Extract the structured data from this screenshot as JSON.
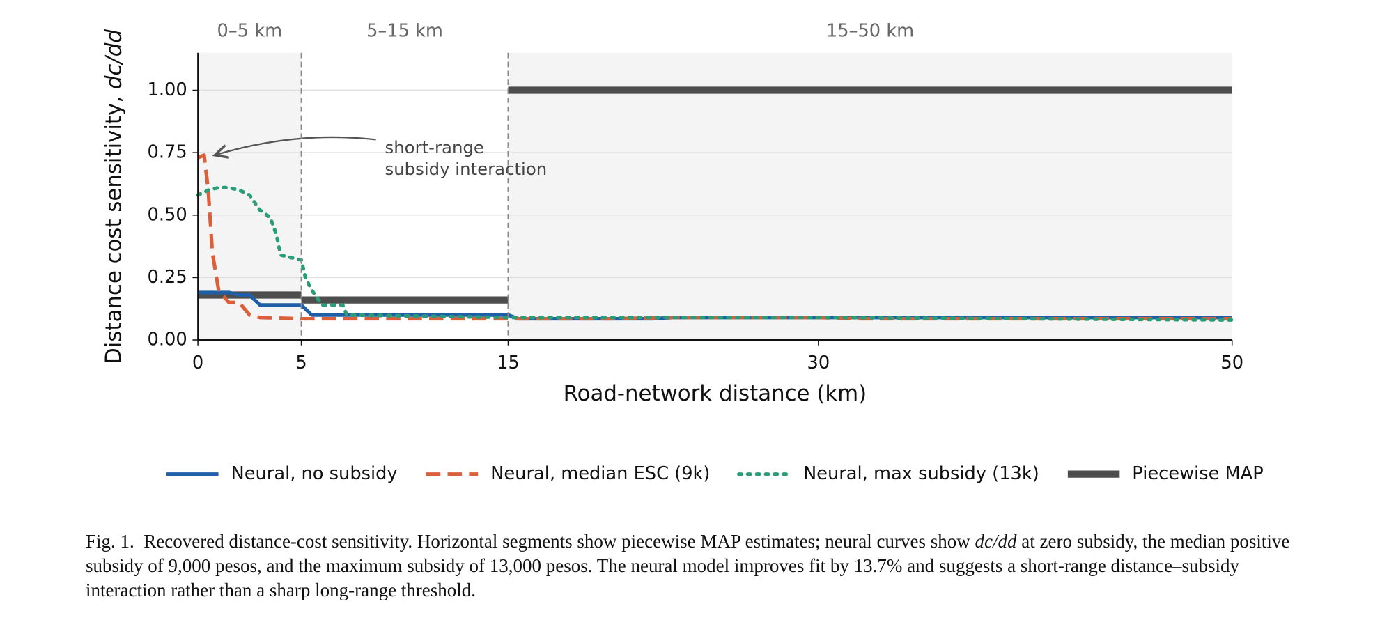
{
  "chart_data": {
    "type": "line",
    "x_label": "Road-network distance (km)",
    "y_label": {
      "text": "Distance cost sensitivity, ",
      "math": "dc/dd"
    },
    "xlim": [
      0,
      50
    ],
    "ylim": [
      0,
      1.15
    ],
    "xticks": [
      0,
      5,
      15,
      30,
      50
    ],
    "yticks": [
      {
        "value": 0,
        "label": "0.00"
      },
      {
        "value": 0.25,
        "label": "0.25"
      },
      {
        "value": 0.5,
        "label": "0.50"
      },
      {
        "value": 0.75,
        "label": "0.75"
      },
      {
        "value": 1.0,
        "label": "1.00"
      }
    ],
    "grid": true,
    "legend": "lower center outside",
    "regions": [
      {
        "label": "0–5 km",
        "x": [
          0,
          5
        ],
        "shaded": true
      },
      {
        "label": "5–15 km",
        "x": [
          5,
          15
        ],
        "shaded": false
      },
      {
        "label": "15–50 km",
        "x": [
          15,
          50
        ],
        "shaded": true
      }
    ],
    "annotation": {
      "text": [
        "short-range",
        "subsidy interaction"
      ],
      "xy": [
        0.3,
        0.74
      ]
    },
    "series": [
      {
        "name": "Neural, no subsidy",
        "color": "#1f5fa8",
        "style": "solid",
        "width": 4,
        "x": [
          0,
          1.5,
          2,
          2.5,
          3,
          5,
          5.5,
          15,
          15.5,
          22,
          23,
          50
        ],
        "values": [
          0.19,
          0.19,
          0.18,
          0.18,
          0.14,
          0.14,
          0.1,
          0.1,
          0.085,
          0.085,
          0.09,
          0.09
        ]
      },
      {
        "name": "Neural, median ESC (9k)",
        "color": "#d9603b",
        "style": "dashed",
        "width": 4,
        "x": [
          0,
          0.3,
          0.5,
          0.7,
          1,
          1.5,
          2,
          2.5,
          3,
          5,
          15,
          20,
          23,
          30,
          32,
          50
        ],
        "values": [
          0.73,
          0.74,
          0.6,
          0.35,
          0.2,
          0.15,
          0.15,
          0.1,
          0.09,
          0.085,
          0.085,
          0.085,
          0.09,
          0.09,
          0.085,
          0.085
        ]
      },
      {
        "name": "Neural, max subsidy (13k)",
        "color": "#2a9d78",
        "style": "dotted",
        "width": 4,
        "x": [
          0,
          0.5,
          1,
          1.5,
          2,
          2.5,
          3,
          3.5,
          3.8,
          4,
          4.5,
          5,
          5.2,
          5.5,
          6,
          7,
          7.2,
          15,
          30,
          50
        ],
        "values": [
          0.58,
          0.6,
          0.61,
          0.61,
          0.6,
          0.58,
          0.52,
          0.49,
          0.42,
          0.34,
          0.33,
          0.32,
          0.25,
          0.2,
          0.14,
          0.14,
          0.1,
          0.09,
          0.09,
          0.08
        ]
      },
      {
        "name": "Piecewise MAP",
        "color": "#4d4d4d",
        "style": "solid",
        "width": 8,
        "x": [
          0,
          5,
          5,
          5,
          15,
          15,
          15,
          50
        ],
        "values": [
          0.18,
          0.18,
          null,
          0.16,
          0.16,
          null,
          1.0,
          1.0
        ]
      }
    ]
  },
  "figure": {
    "caption": {
      "label": "Fig. 1.",
      "text": "Recovered distance-cost sensitivity. Horizontal segments show piecewise MAP estimates; neural curves show ",
      "math": "dc/dd",
      "rest": " at zero subsidy, the median positive subsidy of 9,000 pesos, and the maximum subsidy of 13,000 pesos. The neural model improves fit by 13.7% and suggests a short-range distance–subsidy interaction rather than a sharp long-range threshold."
    }
  }
}
